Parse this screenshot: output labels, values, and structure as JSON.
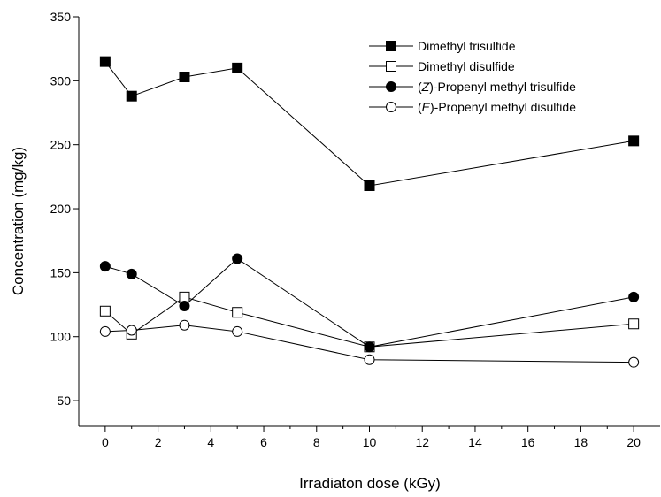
{
  "chart_data": {
    "type": "line",
    "xlabel": "Irradiaton dose (kGy)",
    "ylabel": "Concentration (mg/kg)",
    "xlim": [
      -1,
      21
    ],
    "ylim": [
      30,
      350
    ],
    "x_ticks": [
      "0",
      "2",
      "4",
      "6",
      "8",
      "10",
      "12",
      "14",
      "16",
      "18",
      "20"
    ],
    "y_ticks": [
      "50",
      "100",
      "150",
      "200",
      "250",
      "300",
      "350"
    ],
    "x": [
      0,
      1,
      3,
      5,
      10,
      20
    ],
    "grid": false,
    "legend_position": "top-right",
    "series": [
      {
        "name": "Dimethyl trisulfide",
        "name_parts": {
          "pre": "",
          "italic": "",
          "post": "Dimethyl trisulfide"
        },
        "marker": "square-filled",
        "values": [
          315,
          288,
          303,
          310,
          218,
          253
        ]
      },
      {
        "name": "Dimethyl disulfide",
        "name_parts": {
          "pre": "",
          "italic": "",
          "post": "Dimethyl disulfide"
        },
        "marker": "square-open",
        "values": [
          120,
          102,
          131,
          119,
          92,
          110
        ]
      },
      {
        "name": "(Z)-Propenyl methyl trisulfide",
        "name_parts": {
          "pre": "(",
          "italic": "Z",
          "post": ")-Propenyl methyl trisulfide"
        },
        "marker": "circle-filled",
        "values": [
          155,
          149,
          124,
          161,
          92,
          131
        ]
      },
      {
        "name": "(E)-Propenyl methyl disulfide",
        "name_parts": {
          "pre": "(",
          "italic": "E",
          "post": ")-Propenyl methyl disulfide"
        },
        "marker": "circle-open",
        "values": [
          104,
          105,
          109,
          104,
          82,
          80
        ]
      }
    ]
  }
}
